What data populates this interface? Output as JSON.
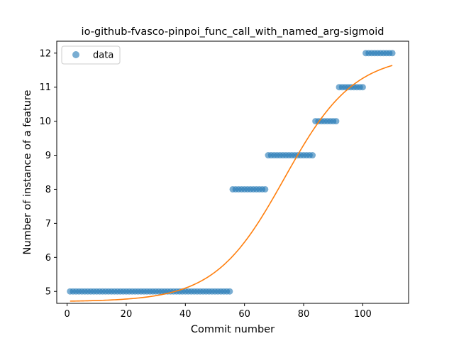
{
  "chart_data": {
    "type": "scatter",
    "title": "io-github-fvasco-pinpoi_func_call_with_named_arg-sigmoid",
    "xlabel": "Commit number",
    "ylabel": "Number of instance of a feature",
    "xlim": [
      -3.5,
      115.5
    ],
    "ylim": [
      4.65,
      12.35
    ],
    "xticks": [
      0,
      20,
      40,
      60,
      80,
      100
    ],
    "yticks": [
      5,
      6,
      7,
      8,
      9,
      10,
      11,
      12
    ],
    "grid": false,
    "legend": {
      "position": "top-left",
      "entries": [
        "data"
      ]
    },
    "series": [
      {
        "name": "data",
        "kind": "points",
        "color": "#1f77b4",
        "segments": [
          {
            "x_from": 1,
            "x_to": 55,
            "y": 5
          },
          {
            "x_from": 56,
            "x_to": 67,
            "y": 8
          },
          {
            "x_from": 68,
            "x_to": 83,
            "y": 9
          },
          {
            "x_from": 84,
            "x_to": 91,
            "y": 10
          },
          {
            "x_from": 92,
            "x_to": 100,
            "y": 11
          },
          {
            "x_from": 101,
            "x_to": 110,
            "y": 12
          }
        ]
      },
      {
        "kind": "line",
        "color": "#ff7f0e",
        "x_range": [
          1,
          110
        ],
        "sigmoid": {
          "base": 4.7,
          "amplitude": 7.25,
          "midpoint": 73.5,
          "slope": 0.085
        }
      }
    ]
  }
}
